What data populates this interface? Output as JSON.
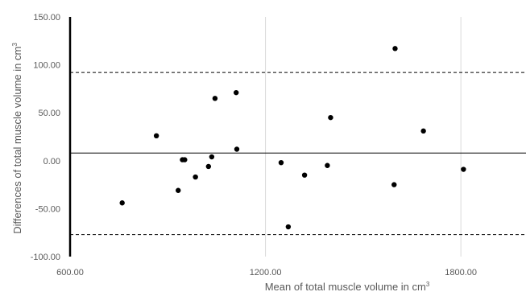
{
  "chart_data": {
    "type": "scatter",
    "title": "",
    "xlabel": "Mean of total muscle volume in cm",
    "xlabel_sup": "3",
    "ylabel": "Differences  of total muscle volume  in cm",
    "ylabel_sup": "3",
    "xlim": [
      600,
      2000
    ],
    "ylim": [
      -100,
      150
    ],
    "x_gridlines": [
      1200,
      1800
    ],
    "grid": "vertical only",
    "legend": "none",
    "x_ticks": [
      {
        "value": 600,
        "label": "600.00"
      },
      {
        "value": 1200,
        "label": "1200.00"
      },
      {
        "value": 1800,
        "label": "1800.00"
      }
    ],
    "y_ticks": [
      {
        "value": 150,
        "label": "150.00"
      },
      {
        "value": 100,
        "label": "100.00"
      },
      {
        "value": 50,
        "label": "50.00"
      },
      {
        "value": 0,
        "label": "0.00"
      },
      {
        "value": -50,
        "label": "-50.00"
      },
      {
        "value": -100,
        "label": "-100.00"
      }
    ],
    "mean_line": 8,
    "upper_limit": 92,
    "lower_limit": -77,
    "points": [
      {
        "x": 760,
        "y": -44
      },
      {
        "x": 865,
        "y": 26
      },
      {
        "x": 932,
        "y": -31
      },
      {
        "x": 945,
        "y": 1
      },
      {
        "x": 952,
        "y": 1
      },
      {
        "x": 985,
        "y": -17
      },
      {
        "x": 1025,
        "y": -6
      },
      {
        "x": 1035,
        "y": 4
      },
      {
        "x": 1045,
        "y": 65
      },
      {
        "x": 1110,
        "y": 71
      },
      {
        "x": 1112,
        "y": 12
      },
      {
        "x": 1248,
        "y": -2
      },
      {
        "x": 1270,
        "y": -69
      },
      {
        "x": 1320,
        "y": -15
      },
      {
        "x": 1390,
        "y": -5
      },
      {
        "x": 1400,
        "y": 45
      },
      {
        "x": 1595,
        "y": -25
      },
      {
        "x": 1598,
        "y": 117
      },
      {
        "x": 1685,
        "y": 31
      },
      {
        "x": 1808,
        "y": -9
      }
    ],
    "colors": {
      "points": "#000000",
      "axis": "#000000",
      "grid": "#d9d9d9",
      "text": "#595959"
    }
  }
}
